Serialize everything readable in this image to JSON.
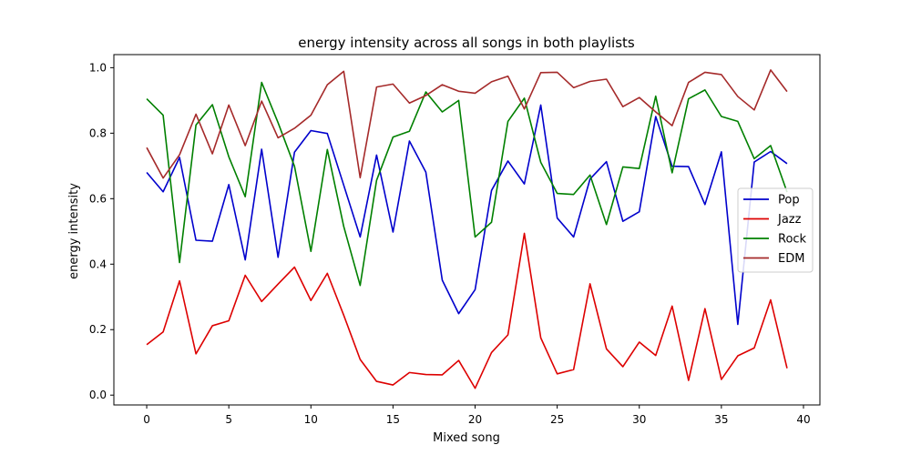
{
  "chart_data": {
    "type": "line",
    "title": "energy intensity across all songs in both playlists",
    "xlabel": "Mixed song",
    "ylabel": "energy intensity",
    "xlim": [
      -2,
      41
    ],
    "ylim": [
      -0.03,
      1.04
    ],
    "xticks": [
      0,
      5,
      10,
      15,
      20,
      25,
      30,
      35,
      40
    ],
    "yticks": [
      0.0,
      0.2,
      0.4,
      0.6,
      0.8,
      1.0
    ],
    "xtick_labels": [
      "0",
      "5",
      "10",
      "15",
      "20",
      "25",
      "30",
      "35",
      "40"
    ],
    "ytick_labels": [
      "0.0",
      "0.2",
      "0.4",
      "0.6",
      "0.8",
      "1.0"
    ],
    "grid": false,
    "legend_position": "center-right",
    "x": [
      0,
      1,
      2,
      3,
      4,
      5,
      6,
      7,
      8,
      9,
      10,
      11,
      12,
      13,
      14,
      15,
      16,
      17,
      18,
      19,
      20,
      21,
      22,
      23,
      24,
      25,
      26,
      27,
      28,
      29,
      30,
      31,
      32,
      33,
      34,
      35,
      36,
      37,
      38,
      39
    ],
    "series": [
      {
        "name": "Pop",
        "color": "#0000cc",
        "values": [
          0.68,
          0.621,
          0.726,
          0.473,
          0.47,
          0.643,
          0.413,
          0.751,
          0.421,
          0.742,
          0.808,
          0.799,
          0.641,
          0.483,
          0.733,
          0.498,
          0.776,
          0.681,
          0.351,
          0.249,
          0.322,
          0.625,
          0.715,
          0.645,
          0.886,
          0.541,
          0.483,
          0.66,
          0.713,
          0.531,
          0.56,
          0.851,
          0.699,
          0.698,
          0.582,
          0.743,
          0.216,
          0.712,
          0.744,
          0.707
        ]
      },
      {
        "name": "Jazz",
        "color": "#dd0000",
        "values": [
          0.154,
          0.193,
          0.349,
          0.126,
          0.212,
          0.227,
          0.366,
          0.286,
          0.339,
          0.391,
          0.289,
          0.372,
          0.244,
          0.109,
          0.042,
          0.031,
          0.069,
          0.063,
          0.062,
          0.106,
          0.021,
          0.13,
          0.184,
          0.494,
          0.175,
          0.065,
          0.078,
          0.34,
          0.141,
          0.087,
          0.162,
          0.121,
          0.272,
          0.045,
          0.264,
          0.048,
          0.12,
          0.144,
          0.291,
          0.082
        ]
      },
      {
        "name": "Rock",
        "color": "#008000",
        "values": [
          0.905,
          0.855,
          0.405,
          0.825,
          0.887,
          0.728,
          0.606,
          0.955,
          0.832,
          0.699,
          0.439,
          0.75,
          0.515,
          0.335,
          0.656,
          0.788,
          0.806,
          0.926,
          0.865,
          0.9,
          0.483,
          0.528,
          0.836,
          0.907,
          0.711,
          0.616,
          0.613,
          0.672,
          0.521,
          0.697,
          0.692,
          0.913,
          0.679,
          0.905,
          0.932,
          0.851,
          0.836,
          0.722,
          0.762,
          0.62
        ]
      },
      {
        "name": "EDM",
        "color": "#a52a2a",
        "values": [
          0.756,
          0.663,
          0.734,
          0.858,
          0.737,
          0.886,
          0.762,
          0.898,
          0.786,
          0.815,
          0.855,
          0.948,
          0.989,
          0.664,
          0.941,
          0.95,
          0.892,
          0.915,
          0.948,
          0.928,
          0.922,
          0.957,
          0.974,
          0.874,
          0.985,
          0.986,
          0.939,
          0.958,
          0.965,
          0.881,
          0.909,
          0.865,
          0.823,
          0.955,
          0.986,
          0.979,
          0.912,
          0.871,
          0.993,
          0.927
        ]
      }
    ]
  }
}
